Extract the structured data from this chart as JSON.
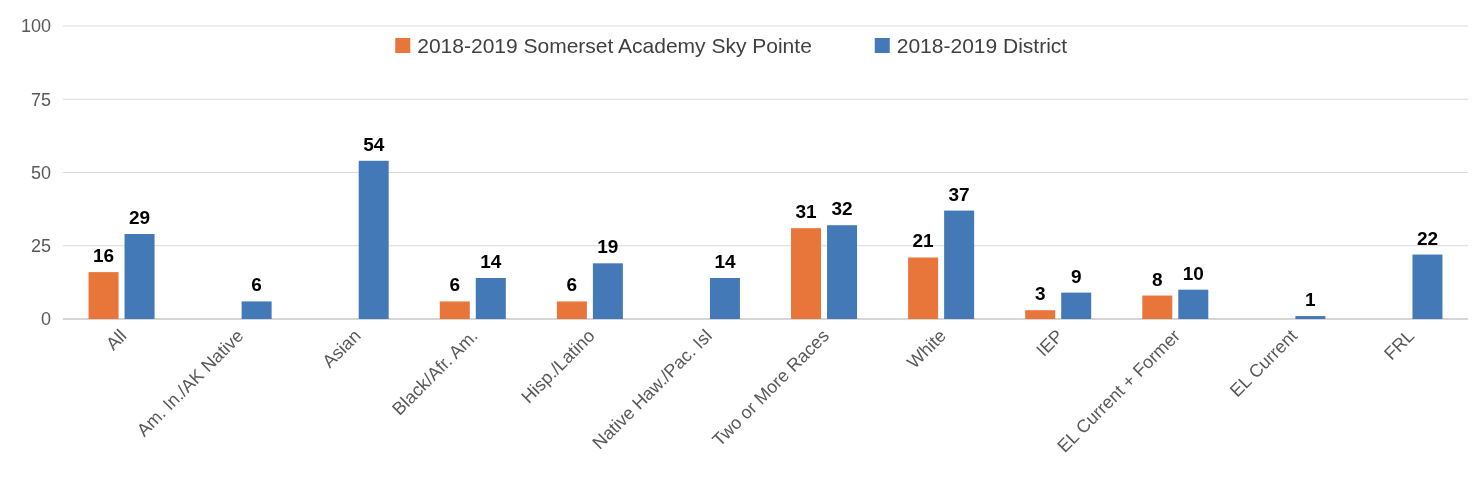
{
  "chart_data": {
    "type": "bar",
    "categories": [
      "All",
      "Am. In./AK Native",
      "Asian",
      "Black/Afr. Am.",
      "Hisp./Latino",
      "Native Haw./Pac. Isl",
      "Two or More Races",
      "White",
      "IEP",
      "EL Current + Former",
      "EL Current",
      "FRL"
    ],
    "series": [
      {
        "name": "2018-2019 Somerset Academy Sky Pointe",
        "color": "#e8763a",
        "values": [
          16,
          null,
          null,
          6,
          6,
          null,
          31,
          21,
          3,
          8,
          null,
          null
        ]
      },
      {
        "name": "2018-2019 District",
        "color": "#4279b6",
        "values": [
          29,
          6,
          54,
          14,
          19,
          14,
          32,
          37,
          9,
          10,
          1,
          22
        ]
      }
    ],
    "ylim": [
      0,
      100
    ],
    "yticks": [
      0,
      25,
      50,
      75,
      100
    ],
    "grid": "y",
    "legend": "top",
    "data_labels": true
  }
}
